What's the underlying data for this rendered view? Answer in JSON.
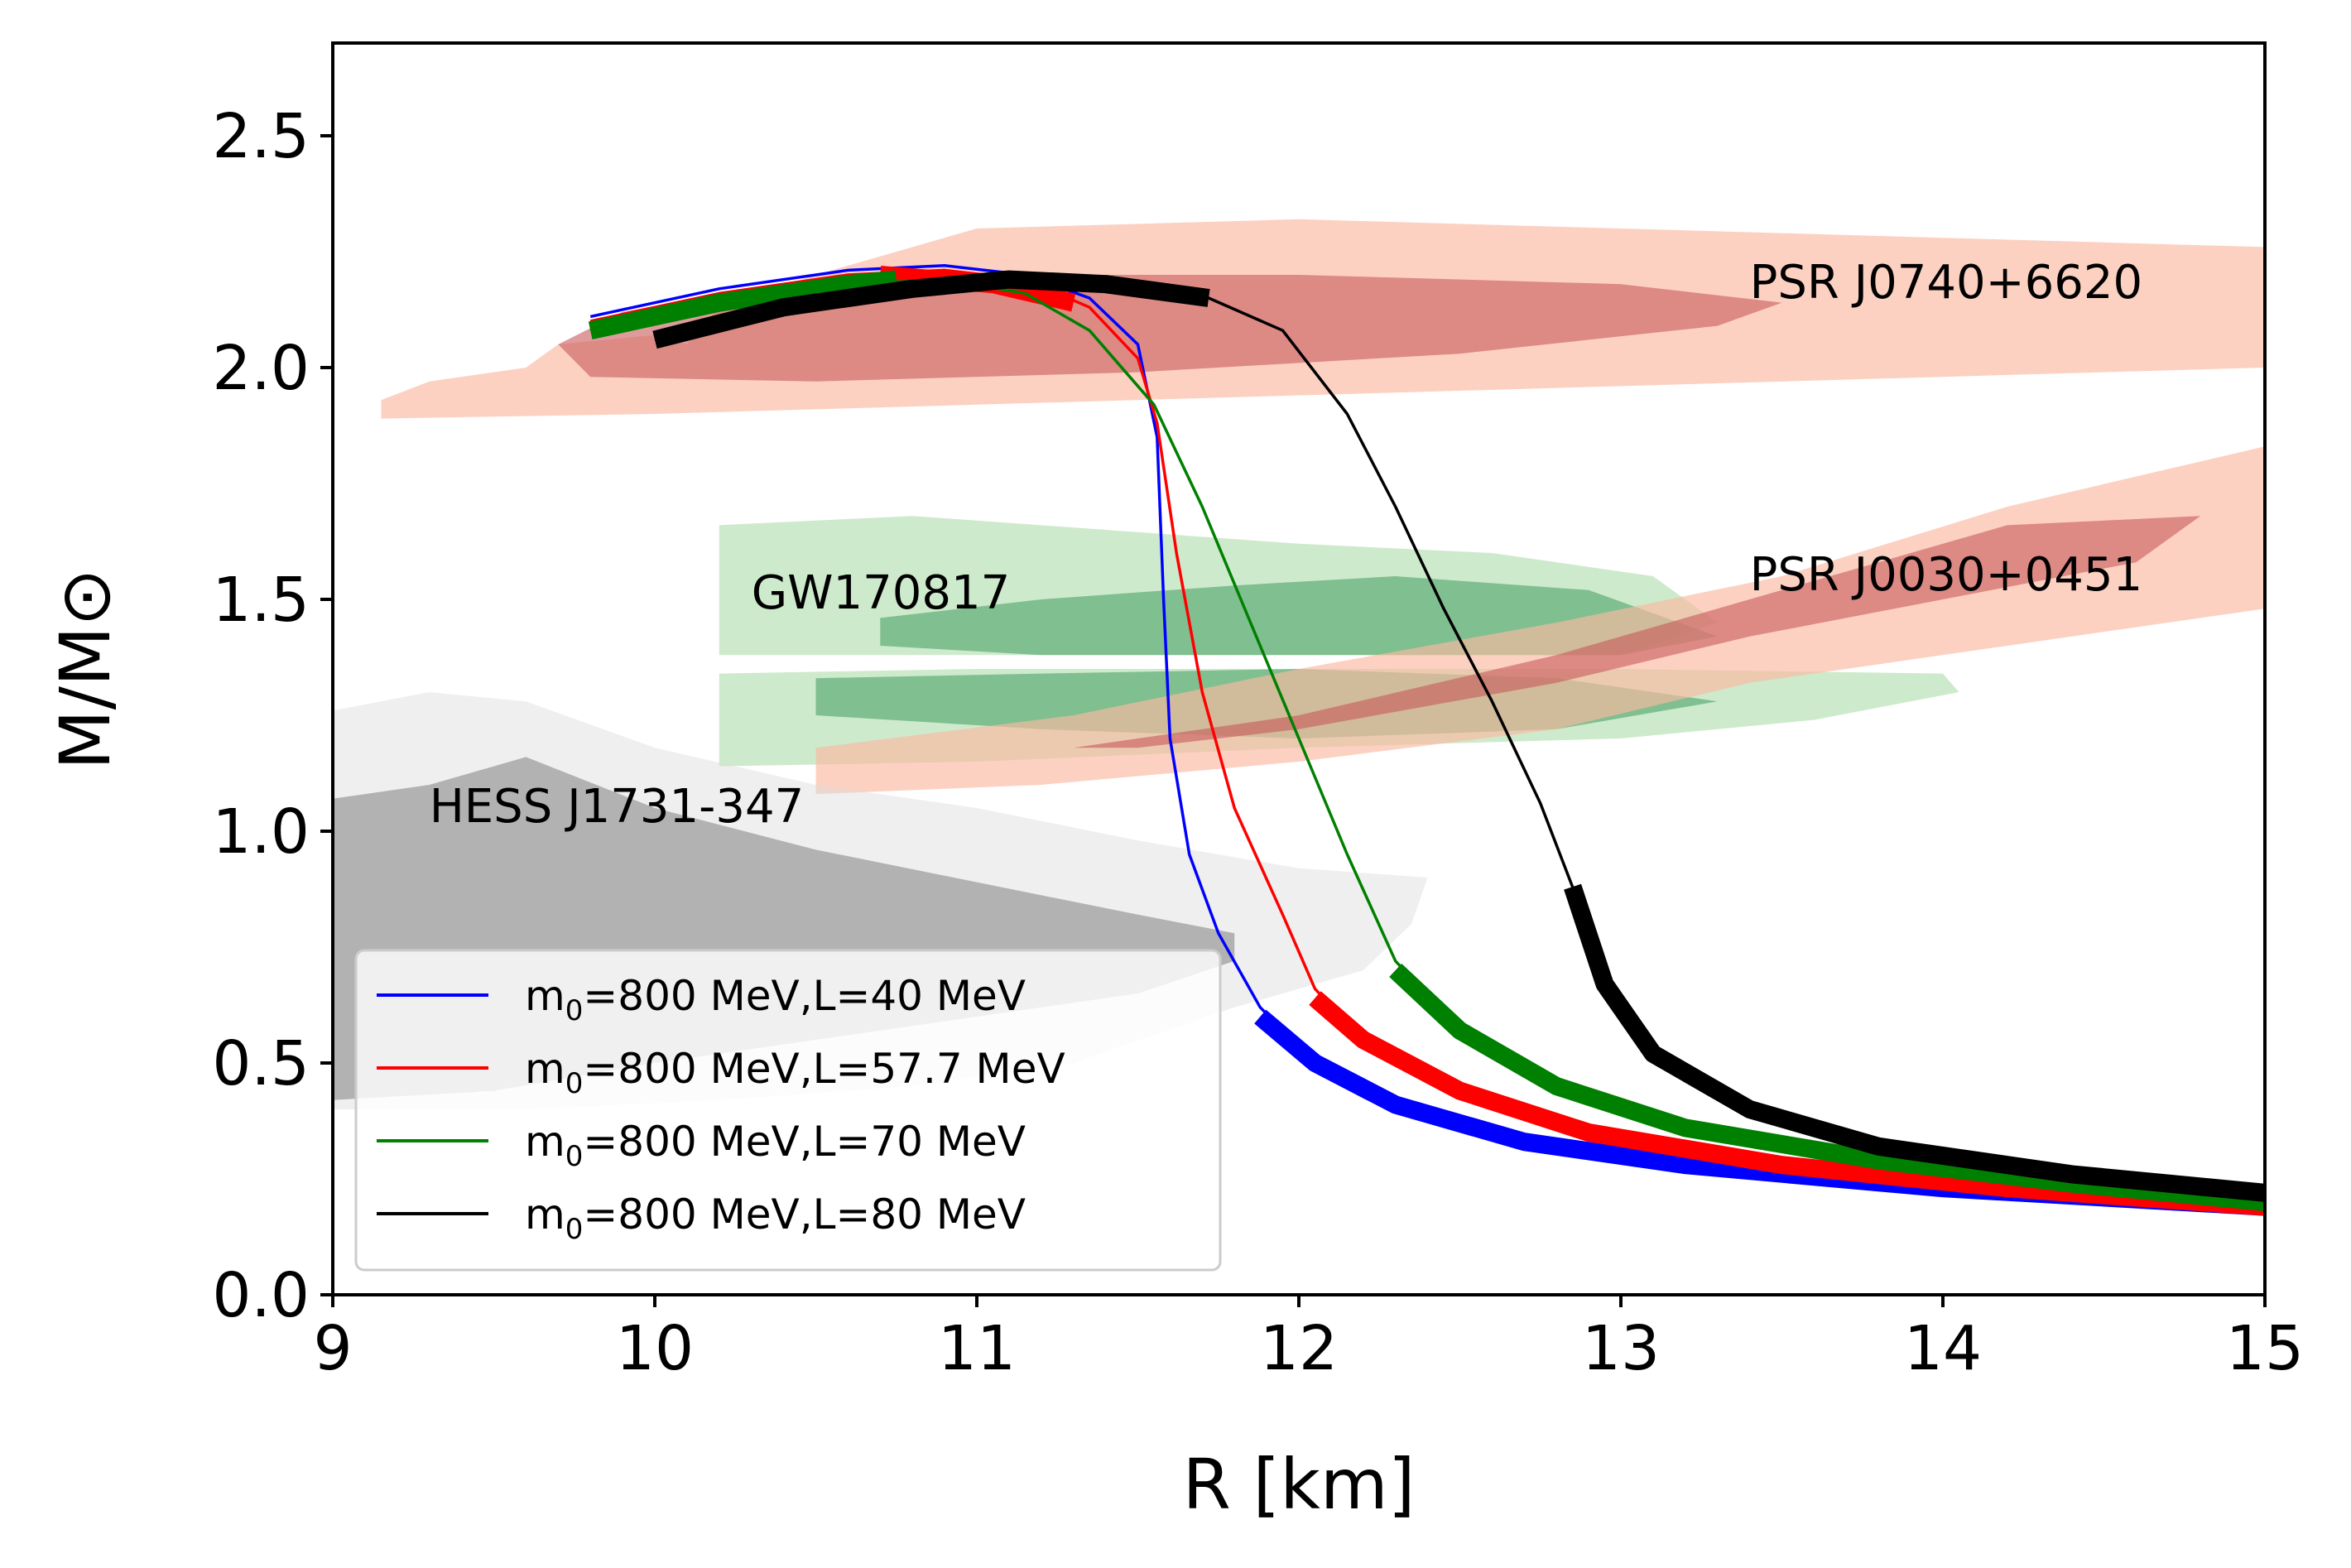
{
  "chart_data": {
    "type": "line",
    "xlabel": "R [km]",
    "ylabel": "M/M⊙",
    "xlim": [
      9,
      15
    ],
    "ylim": [
      0,
      2.7
    ],
    "xticks": [
      "9",
      "10",
      "11",
      "12",
      "13",
      "14",
      "15"
    ],
    "yticks": [
      "0.0",
      "0.5",
      "1.0",
      "1.5",
      "2.0",
      "2.5"
    ],
    "legend_position": "lower-left",
    "series": [
      {
        "name": "m0=800 MeV,L=40 MeV",
        "legend": {
          "pre": "m",
          "sub": "0",
          "post": "=800 MeV,L=40 MeV"
        },
        "color": "#0000ff",
        "points": [
          [
            9.8,
            2.11
          ],
          [
            10.2,
            2.17
          ],
          [
            10.6,
            2.21
          ],
          [
            10.9,
            2.22
          ],
          [
            11.15,
            2.2
          ],
          [
            11.35,
            2.15
          ],
          [
            11.5,
            2.05
          ],
          [
            11.56,
            1.85
          ],
          [
            11.58,
            1.5
          ],
          [
            11.6,
            1.2
          ],
          [
            11.66,
            0.95
          ],
          [
            11.75,
            0.78
          ],
          [
            11.88,
            0.62
          ],
          [
            12.05,
            0.5
          ],
          [
            12.3,
            0.41
          ],
          [
            12.7,
            0.33
          ],
          [
            13.2,
            0.28
          ],
          [
            14.0,
            0.23
          ],
          [
            15.0,
            0.19
          ]
        ],
        "thick_segments": [
          [
            [
              11.88,
              0.6
            ],
            [
              12.05,
              0.5
            ],
            [
              12.3,
              0.41
            ],
            [
              12.7,
              0.33
            ],
            [
              13.2,
              0.28
            ],
            [
              14.0,
              0.23
            ],
            [
              15.0,
              0.19
            ]
          ]
        ]
      },
      {
        "name": "m0=800 MeV,L=57.7 MeV",
        "legend": {
          "pre": "m",
          "sub": "0",
          "post": "=800 MeV,L=57.7 MeV"
        },
        "color": "#ff0000",
        "points": [
          [
            9.8,
            2.1
          ],
          [
            10.2,
            2.16
          ],
          [
            10.6,
            2.2
          ],
          [
            10.9,
            2.21
          ],
          [
            11.15,
            2.19
          ],
          [
            11.35,
            2.13
          ],
          [
            11.5,
            2.02
          ],
          [
            11.56,
            1.88
          ],
          [
            11.62,
            1.6
          ],
          [
            11.7,
            1.3
          ],
          [
            11.8,
            1.05
          ],
          [
            11.95,
            0.82
          ],
          [
            12.05,
            0.66
          ],
          [
            12.2,
            0.55
          ],
          [
            12.5,
            0.44
          ],
          [
            12.9,
            0.35
          ],
          [
            13.5,
            0.28
          ],
          [
            14.2,
            0.23
          ],
          [
            15.0,
            0.19
          ]
        ],
        "thick_segments": [
          [
            [
              10.7,
              2.2
            ],
            [
              11.05,
              2.18
            ],
            [
              11.3,
              2.14
            ]
          ],
          [
            [
              12.05,
              0.64
            ],
            [
              12.2,
              0.55
            ],
            [
              12.5,
              0.44
            ],
            [
              12.9,
              0.35
            ],
            [
              13.5,
              0.28
            ],
            [
              14.2,
              0.23
            ],
            [
              15.0,
              0.19
            ]
          ]
        ]
      },
      {
        "name": "m0=800 MeV,L=70 MeV",
        "legend": {
          "pre": "m",
          "sub": "0",
          "post": "=800 MeV,L=70 MeV"
        },
        "color": "#008000",
        "points": [
          [
            9.8,
            2.08
          ],
          [
            10.2,
            2.14
          ],
          [
            10.6,
            2.18
          ],
          [
            10.9,
            2.19
          ],
          [
            11.15,
            2.16
          ],
          [
            11.35,
            2.08
          ],
          [
            11.55,
            1.92
          ],
          [
            11.7,
            1.7
          ],
          [
            11.85,
            1.45
          ],
          [
            12.0,
            1.2
          ],
          [
            12.15,
            0.95
          ],
          [
            12.3,
            0.72
          ],
          [
            12.5,
            0.57
          ],
          [
            12.8,
            0.45
          ],
          [
            13.2,
            0.36
          ],
          [
            13.8,
            0.29
          ],
          [
            14.4,
            0.24
          ],
          [
            15.0,
            0.2
          ]
        ],
        "thick_segments": [
          [
            [
              9.8,
              2.08
            ],
            [
              10.2,
              2.14
            ],
            [
              10.6,
              2.18
            ],
            [
              10.75,
              2.19
            ]
          ],
          [
            [
              12.3,
              0.7
            ],
            [
              12.5,
              0.57
            ],
            [
              12.8,
              0.45
            ],
            [
              13.2,
              0.36
            ],
            [
              13.8,
              0.29
            ],
            [
              14.4,
              0.24
            ],
            [
              15.0,
              0.2
            ]
          ]
        ]
      },
      {
        "name": "m0=800 MeV,L=80 MeV",
        "legend": {
          "pre": "m",
          "sub": "0",
          "post": "=800 MeV,L=80 MeV"
        },
        "color": "#000000",
        "points": [
          [
            10.0,
            2.06
          ],
          [
            10.4,
            2.13
          ],
          [
            10.8,
            2.17
          ],
          [
            11.1,
            2.19
          ],
          [
            11.4,
            2.18
          ],
          [
            11.72,
            2.15
          ],
          [
            11.95,
            2.08
          ],
          [
            12.15,
            1.9
          ],
          [
            12.3,
            1.7
          ],
          [
            12.45,
            1.48
          ],
          [
            12.6,
            1.28
          ],
          [
            12.75,
            1.06
          ],
          [
            12.85,
            0.88
          ],
          [
            12.95,
            0.67
          ],
          [
            13.1,
            0.52
          ],
          [
            13.4,
            0.4
          ],
          [
            13.8,
            0.32
          ],
          [
            14.4,
            0.26
          ],
          [
            15.0,
            0.22
          ]
        ],
        "thick_segments": [
          [
            [
              10.0,
              2.06
            ],
            [
              10.4,
              2.13
            ],
            [
              10.8,
              2.17
            ],
            [
              11.1,
              2.19
            ],
            [
              11.4,
              2.18
            ],
            [
              11.72,
              2.15
            ]
          ],
          [
            [
              12.85,
              0.88
            ],
            [
              12.95,
              0.67
            ],
            [
              13.1,
              0.52
            ],
            [
              13.4,
              0.4
            ],
            [
              13.8,
              0.32
            ],
            [
              14.4,
              0.26
            ],
            [
              15.0,
              0.22
            ]
          ]
        ]
      }
    ],
    "regions": [
      {
        "name": "PSR J0740+6620",
        "color": "#fbb9a2",
        "opacity": 0.65,
        "label_anchor": [
          13.4,
          2.15
        ],
        "polygons": [
          [
            [
              9.15,
              1.93
            ],
            [
              9.3,
              1.97
            ],
            [
              9.6,
              2.0
            ],
            [
              9.7,
              2.05
            ],
            [
              10.0,
              2.07
            ],
            [
              10.1,
              2.05
            ],
            [
              10.2,
              2.13
            ],
            [
              10.5,
              2.2
            ],
            [
              11.0,
              2.3
            ],
            [
              12.0,
              2.32
            ],
            [
              13.0,
              2.3
            ],
            [
              14.0,
              2.28
            ],
            [
              15.0,
              2.26
            ],
            [
              15.0,
              2.0
            ],
            [
              14.0,
              1.98
            ],
            [
              13.0,
              1.96
            ],
            [
              12.0,
              1.94
            ],
            [
              11.0,
              1.92
            ],
            [
              10.0,
              1.9
            ],
            [
              9.15,
              1.89
            ]
          ]
        ]
      },
      {
        "name": "PSR J0740+6620 inner",
        "color": "#c8595a",
        "opacity": 0.6,
        "polygons": [
          [
            [
              9.7,
              2.05
            ],
            [
              9.9,
              2.12
            ],
            [
              10.3,
              2.17
            ],
            [
              11.0,
              2.2
            ],
            [
              12.0,
              2.2
            ],
            [
              13.0,
              2.18
            ],
            [
              13.5,
              2.14
            ],
            [
              13.3,
              2.09
            ],
            [
              12.5,
              2.03
            ],
            [
              11.5,
              1.99
            ],
            [
              10.5,
              1.97
            ],
            [
              9.8,
              1.98
            ]
          ]
        ]
      },
      {
        "name": "GW170817",
        "color": "#9ed69a",
        "opacity": 0.5,
        "label_anchor": [
          10.3,
          1.48
        ],
        "polygons": [
          [
            [
              10.2,
              1.66
            ],
            [
              10.8,
              1.68
            ],
            [
              11.4,
              1.65
            ],
            [
              12.0,
              1.62
            ],
            [
              12.6,
              1.6
            ],
            [
              13.1,
              1.55
            ],
            [
              13.3,
              1.45
            ],
            [
              13.0,
              1.38
            ],
            [
              12.0,
              1.38
            ],
            [
              11.0,
              1.38
            ],
            [
              10.2,
              1.38
            ]
          ],
          [
            [
              10.2,
              1.34
            ],
            [
              11.0,
              1.35
            ],
            [
              12.0,
              1.35
            ],
            [
              13.0,
              1.35
            ],
            [
              14.0,
              1.34
            ],
            [
              14.05,
              1.3
            ],
            [
              13.6,
              1.24
            ],
            [
              13.0,
              1.2
            ],
            [
              12.0,
              1.18
            ],
            [
              11.0,
              1.15
            ],
            [
              10.2,
              1.14
            ]
          ]
        ]
      },
      {
        "name": "GW170817 inner",
        "color": "#3f9a5f",
        "opacity": 0.55,
        "polygons": [
          [
            [
              10.7,
              1.46
            ],
            [
              11.2,
              1.5
            ],
            [
              11.8,
              1.53
            ],
            [
              12.3,
              1.55
            ],
            [
              12.9,
              1.52
            ],
            [
              13.3,
              1.42
            ],
            [
              13.0,
              1.38
            ],
            [
              12.2,
              1.38
            ],
            [
              11.2,
              1.38
            ],
            [
              10.7,
              1.4
            ]
          ],
          [
            [
              10.5,
              1.33
            ],
            [
              11.2,
              1.34
            ],
            [
              12.0,
              1.35
            ],
            [
              12.8,
              1.33
            ],
            [
              13.3,
              1.28
            ],
            [
              12.8,
              1.22
            ],
            [
              12.0,
              1.2
            ],
            [
              11.2,
              1.22
            ],
            [
              10.5,
              1.25
            ]
          ]
        ]
      },
      {
        "name": "PSR J0030+0451",
        "color": "#fbb9a2",
        "opacity": 0.65,
        "label_anchor": [
          13.4,
          1.52
        ],
        "polygons": [
          [
            [
              10.5,
              1.18
            ],
            [
              11.3,
              1.25
            ],
            [
              12.0,
              1.35
            ],
            [
              12.8,
              1.45
            ],
            [
              13.5,
              1.55
            ],
            [
              14.2,
              1.7
            ],
            [
              15.0,
              1.83
            ],
            [
              15.0,
              1.48
            ],
            [
              14.2,
              1.4
            ],
            [
              13.4,
              1.32
            ],
            [
              12.8,
              1.22
            ],
            [
              12.0,
              1.15
            ],
            [
              11.2,
              1.1
            ],
            [
              10.5,
              1.08
            ]
          ]
        ]
      },
      {
        "name": "PSR J0030+0451 inner",
        "color": "#c8595a",
        "opacity": 0.6,
        "polygons": [
          [
            [
              11.3,
              1.18
            ],
            [
              12.0,
              1.25
            ],
            [
              12.8,
              1.38
            ],
            [
              13.5,
              1.52
            ],
            [
              14.2,
              1.66
            ],
            [
              14.8,
              1.68
            ],
            [
              14.6,
              1.58
            ],
            [
              14.0,
              1.5
            ],
            [
              13.4,
              1.42
            ],
            [
              12.8,
              1.32
            ],
            [
              12.0,
              1.22
            ],
            [
              11.5,
              1.18
            ]
          ]
        ]
      },
      {
        "name": "HESS J1731-347",
        "color": "#dcdcdc",
        "opacity": 0.45,
        "label_anchor": [
          9.3,
          1.02
        ],
        "polygons": [
          [
            [
              9.0,
              1.26
            ],
            [
              9.3,
              1.3
            ],
            [
              9.6,
              1.28
            ],
            [
              10.0,
              1.18
            ],
            [
              10.5,
              1.1
            ],
            [
              11.0,
              1.05
            ],
            [
              11.5,
              0.98
            ],
            [
              12.0,
              0.92
            ],
            [
              12.4,
              0.9
            ],
            [
              12.35,
              0.8
            ],
            [
              12.2,
              0.7
            ],
            [
              11.8,
              0.62
            ],
            [
              11.3,
              0.5
            ],
            [
              10.8,
              0.45
            ],
            [
              10.2,
              0.42
            ],
            [
              9.6,
              0.4
            ],
            [
              9.0,
              0.4
            ]
          ]
        ]
      },
      {
        "name": "HESS J1731-347 inner",
        "color": "#999999",
        "opacity": 0.7,
        "polygons": [
          [
            [
              9.0,
              1.07
            ],
            [
              9.3,
              1.1
            ],
            [
              9.6,
              1.16
            ],
            [
              10.0,
              1.05
            ],
            [
              10.5,
              0.96
            ],
            [
              11.0,
              0.89
            ],
            [
              11.5,
              0.82
            ],
            [
              11.8,
              0.78
            ],
            [
              11.8,
              0.72
            ],
            [
              11.5,
              0.65
            ],
            [
              11.0,
              0.6
            ],
            [
              10.5,
              0.55
            ],
            [
              10.0,
              0.5
            ],
            [
              9.5,
              0.44
            ],
            [
              9.0,
              0.42
            ]
          ]
        ]
      }
    ]
  }
}
